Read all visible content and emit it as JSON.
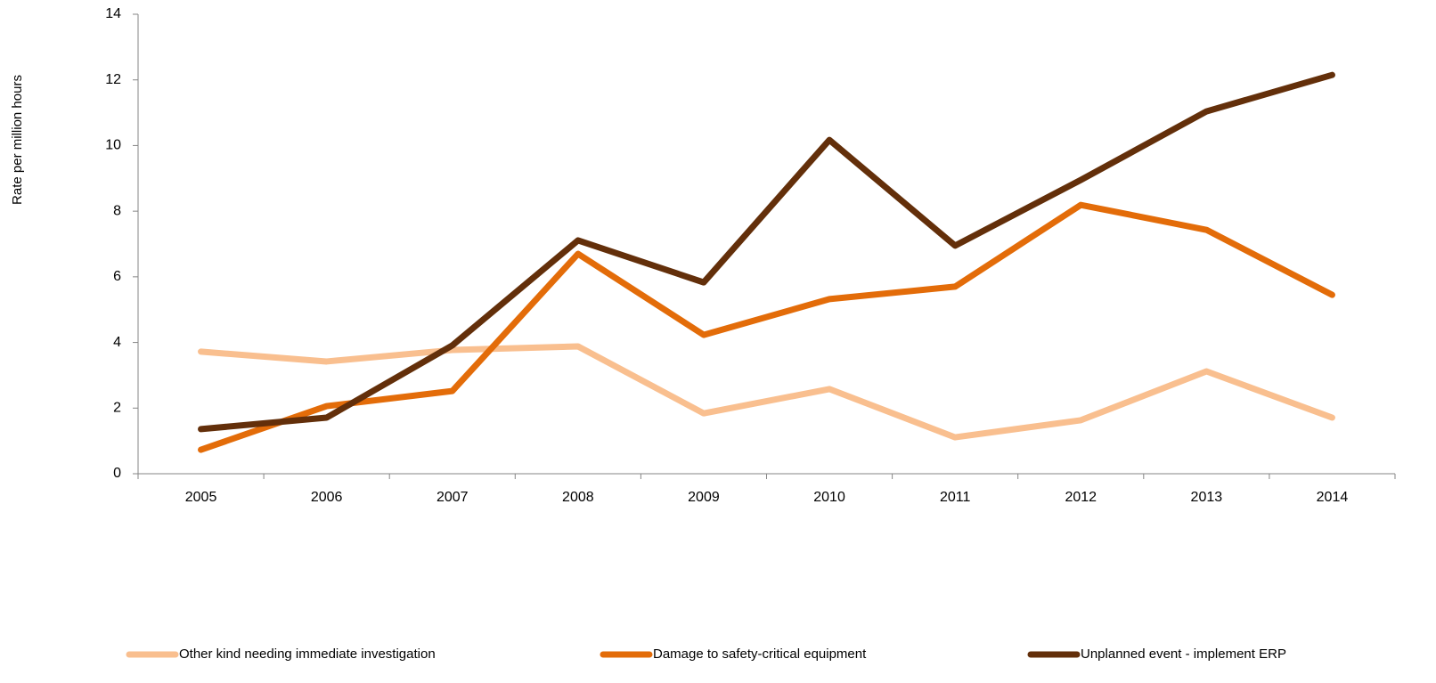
{
  "chart_data": {
    "type": "line",
    "y_label": "Rate per million hours",
    "categories": [
      "2005",
      "2006",
      "2007",
      "2008",
      "2009",
      "2010",
      "2011",
      "2012",
      "2013",
      "2014"
    ],
    "series": [
      {
        "name": "Other kind needing immediate investigation",
        "color": "#f9bf8f",
        "values": [
          3.72,
          3.42,
          3.77,
          3.88,
          1.84,
          2.58,
          1.11,
          1.63,
          3.12,
          1.71
        ]
      },
      {
        "name": "Damage to safety-critical equipment",
        "color": "#e36c09",
        "values": [
          0.73,
          2.06,
          2.52,
          6.7,
          4.23,
          5.32,
          5.7,
          8.19,
          7.43,
          5.45
        ]
      },
      {
        "name": "Unplanned event - implement ERP",
        "color": "#632f0a",
        "values": [
          1.36,
          1.71,
          3.91,
          7.11,
          5.83,
          10.17,
          6.95,
          8.95,
          11.04,
          12.15
        ]
      }
    ],
    "ylim": [
      0,
      14
    ],
    "yticks": [
      0,
      2,
      4,
      6,
      8,
      10,
      12,
      14
    ],
    "grid": false,
    "legend": "bottom"
  }
}
